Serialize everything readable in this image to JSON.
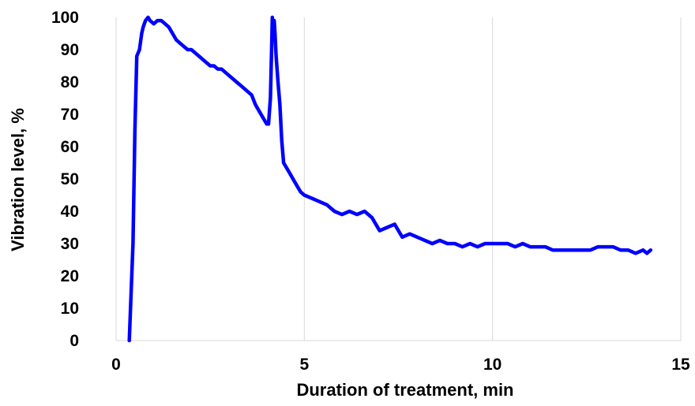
{
  "chart_data": {
    "type": "line",
    "xlabel": "Duration of treatment, min",
    "ylabel": "Vibration level, %",
    "xlim": [
      0,
      15
    ],
    "ylim": [
      0,
      100
    ],
    "xticks": [
      0,
      5,
      10,
      15
    ],
    "yticks": [
      0,
      10,
      20,
      30,
      40,
      50,
      60,
      70,
      80,
      90,
      100
    ],
    "grid": "vertical",
    "legend": "none",
    "series": [
      {
        "color": "#0000ff",
        "x": [
          0.35,
          0.45,
          0.5,
          0.55,
          0.62,
          0.68,
          0.72,
          0.78,
          0.85,
          0.9,
          1.0,
          1.1,
          1.2,
          1.3,
          1.4,
          1.5,
          1.6,
          1.7,
          1.8,
          1.9,
          2.0,
          2.1,
          2.2,
          2.3,
          2.4,
          2.5,
          2.6,
          2.7,
          2.8,
          2.9,
          3.0,
          3.1,
          3.2,
          3.3,
          3.4,
          3.5,
          3.6,
          3.7,
          3.8,
          3.9,
          4.0,
          4.05,
          4.1,
          4.13,
          4.15,
          4.18,
          4.2,
          4.22,
          4.25,
          4.3,
          4.35,
          4.4,
          4.45,
          4.5,
          4.6,
          4.7,
          4.8,
          4.9,
          5.0,
          5.2,
          5.4,
          5.6,
          5.8,
          6.0,
          6.2,
          6.4,
          6.6,
          6.8,
          7.0,
          7.2,
          7.4,
          7.6,
          7.8,
          8.0,
          8.2,
          8.4,
          8.6,
          8.8,
          9.0,
          9.2,
          9.4,
          9.6,
          9.8,
          10.0,
          10.2,
          10.4,
          10.6,
          10.8,
          11.0,
          11.2,
          11.4,
          11.6,
          11.8,
          12.0,
          12.2,
          12.4,
          12.6,
          12.8,
          13.0,
          13.2,
          13.4,
          13.6,
          13.8,
          14.0,
          14.1,
          14.2
        ],
        "y": [
          0,
          30,
          65,
          88,
          90,
          95,
          97,
          99,
          100,
          99,
          98,
          99,
          99,
          98,
          97,
          95,
          93,
          92,
          91,
          90,
          90,
          89,
          88,
          87,
          86,
          85,
          85,
          84,
          84,
          83,
          82,
          81,
          80,
          79,
          78,
          77,
          76,
          73,
          71,
          69,
          67,
          67,
          75,
          90,
          100,
          96,
          99,
          95,
          88,
          80,
          73,
          62,
          55,
          54,
          52,
          50,
          48,
          46,
          45,
          44,
          43,
          42,
          40,
          39,
          40,
          39,
          40,
          38,
          34,
          35,
          36,
          32,
          33,
          32,
          31,
          30,
          31,
          30,
          30,
          29,
          30,
          29,
          30,
          30,
          30,
          30,
          29,
          30,
          29,
          29,
          29,
          28,
          28,
          28,
          28,
          28,
          28,
          29,
          29,
          29,
          28,
          28,
          27,
          28,
          27,
          28
        ]
      }
    ]
  }
}
